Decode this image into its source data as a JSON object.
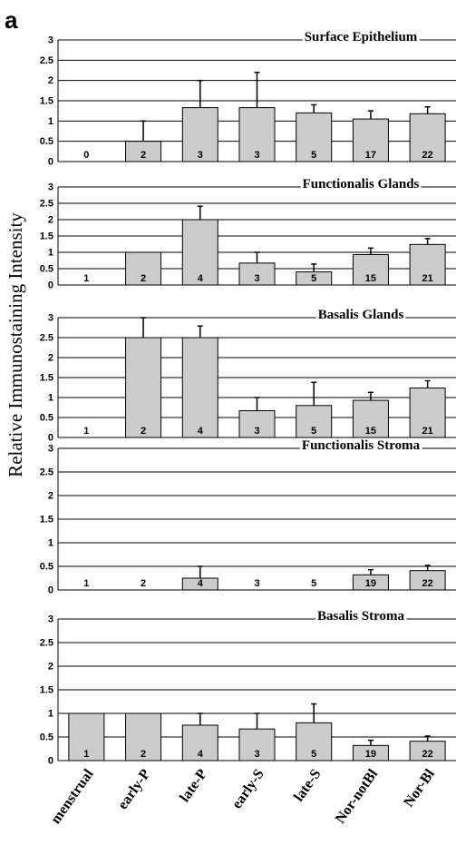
{
  "panel_label": "a",
  "ylabel": "Relative Immunostaining Intensity",
  "colors": {
    "bar_fill": "#cccccc",
    "bar_stroke": "#000000",
    "grid": "#000000",
    "background": "#ffffff"
  },
  "chart_data": [
    {
      "type": "bar",
      "title": "Surface Epithelium",
      "categories": [
        "menstrual",
        "early-P",
        "late-P",
        "early-S",
        "late-S",
        "Nor-notBl",
        "Nor-Bl"
      ],
      "values": [
        0,
        0.5,
        1.33,
        1.33,
        1.2,
        1.05,
        1.18
      ],
      "error": [
        0,
        0.5,
        0.67,
        0.87,
        0.2,
        0.2,
        0.17
      ],
      "n": [
        "0",
        "2",
        "3",
        "3",
        "5",
        "17",
        "22"
      ],
      "ylim": [
        0,
        3
      ],
      "yticks": [
        "0",
        "0.5",
        "1",
        "1.5",
        "2",
        "2.5",
        "3"
      ],
      "grid": true
    },
    {
      "type": "bar",
      "title": "Functionalis Glands",
      "categories": [
        "menstrual",
        "early-P",
        "late-P",
        "early-S",
        "late-S",
        "Nor-notBl",
        "Nor-Bl"
      ],
      "values": [
        0,
        1.0,
        2.0,
        0.67,
        0.4,
        0.93,
        1.24
      ],
      "error": [
        0,
        0,
        0.41,
        0.33,
        0.24,
        0.2,
        0.18
      ],
      "n": [
        "1",
        "2",
        "4",
        "3",
        "5",
        "15",
        "21"
      ],
      "ylim": [
        0,
        3
      ],
      "yticks": [
        "0",
        "0.5",
        "1",
        "1.5",
        "2",
        "2.5",
        "3"
      ],
      "grid": true
    },
    {
      "type": "bar",
      "title": "Basalis Glands",
      "categories": [
        "menstrual",
        "early-P",
        "late-P",
        "early-S",
        "late-S",
        "Nor-notBl",
        "Nor-Bl"
      ],
      "values": [
        0,
        2.5,
        2.5,
        0.67,
        0.8,
        0.93,
        1.24
      ],
      "error": [
        0,
        0.5,
        0.29,
        0.33,
        0.58,
        0.2,
        0.18
      ],
      "n": [
        "1",
        "2",
        "4",
        "3",
        "5",
        "15",
        "21"
      ],
      "ylim": [
        0,
        3
      ],
      "yticks": [
        "0",
        "0.5",
        "1",
        "1.5",
        "2",
        "2.5",
        "3"
      ],
      "grid": true
    },
    {
      "type": "bar",
      "title": "Functionalis Stroma",
      "categories": [
        "menstrual",
        "early-P",
        "late-P",
        "early-S",
        "late-S",
        "Nor-notBl",
        "Nor-Bl"
      ],
      "values": [
        0,
        0,
        0.25,
        0,
        0,
        0.32,
        0.41
      ],
      "error": [
        0,
        0,
        0.25,
        0,
        0,
        0.11,
        0.11
      ],
      "n": [
        "1",
        "2",
        "4",
        "3",
        "5",
        "19",
        "22"
      ],
      "ylim": [
        0,
        3
      ],
      "yticks": [
        "0",
        "0.5",
        "1",
        "1.5",
        "2",
        "2.5",
        "3"
      ],
      "grid": true
    },
    {
      "type": "bar",
      "title": "Basalis Stroma",
      "categories": [
        "menstrual",
        "early-P",
        "late-P",
        "early-S",
        "late-S",
        "Nor-notBl",
        "Nor-Bl"
      ],
      "values": [
        1.0,
        1.0,
        0.75,
        0.67,
        0.8,
        0.32,
        0.41
      ],
      "error": [
        0,
        0,
        0.25,
        0.33,
        0.4,
        0.11,
        0.11
      ],
      "n": [
        "1",
        "2",
        "4",
        "3",
        "5",
        "19",
        "22"
      ],
      "ylim": [
        0,
        3
      ],
      "yticks": [
        "0",
        "0.5",
        "1",
        "1.5",
        "2",
        "2.5",
        "3"
      ],
      "grid": true
    }
  ]
}
